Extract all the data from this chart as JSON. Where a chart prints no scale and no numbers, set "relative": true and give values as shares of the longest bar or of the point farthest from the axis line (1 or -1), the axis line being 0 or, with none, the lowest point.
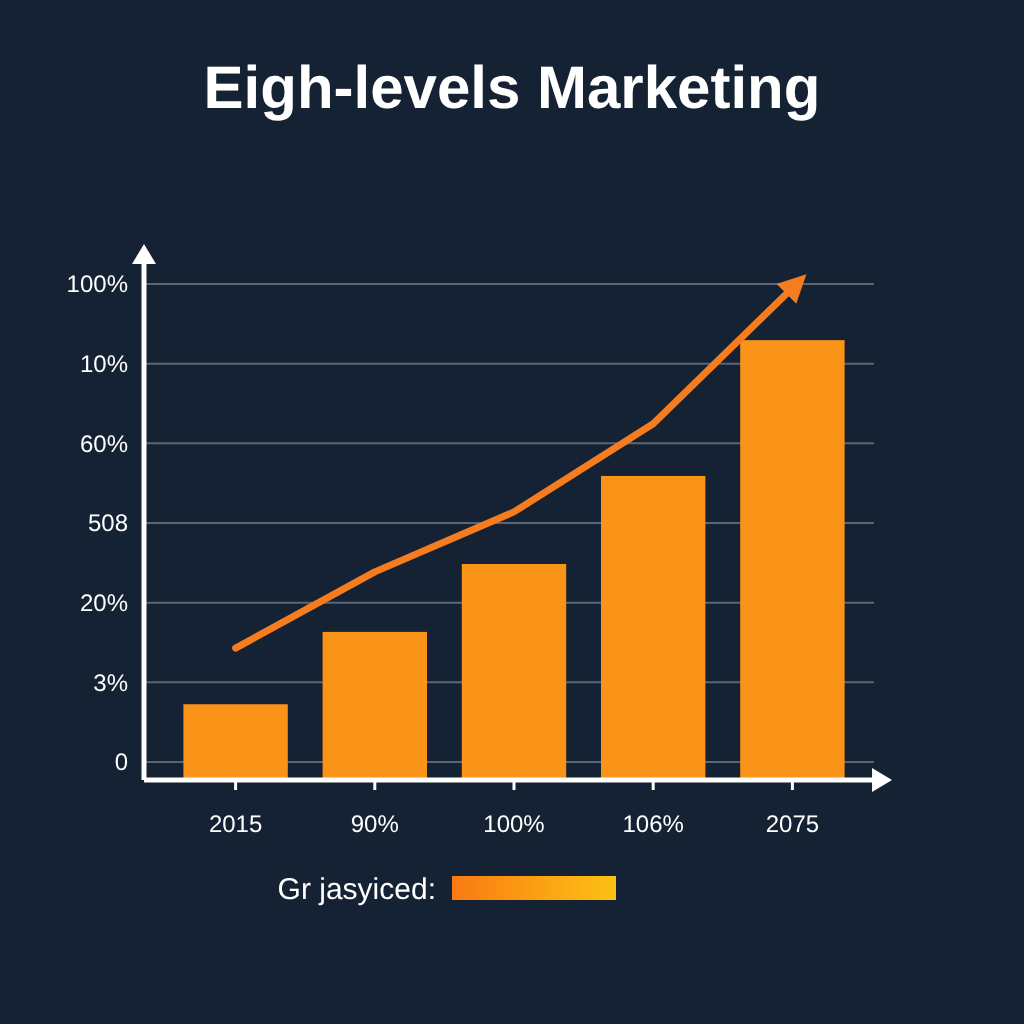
{
  "chart_data": {
    "type": "bar",
    "title": "Eigh-levels Marketing",
    "categories": [
      "2015",
      "90%",
      "100%",
      "106%",
      "2075"
    ],
    "series": [
      {
        "color": "#fa9418",
        "values": [
          0.154,
          0.301,
          0.439,
          0.618,
          0.894
        ]
      },
      {
        "type": "line",
        "color": "#f57c1f",
        "values": [
          0.268,
          0.423,
          0.545,
          0.724,
          1
        ]
      }
    ],
    "relative": true,
    "annotations": [
      "100%",
      "10%",
      "60%",
      "508",
      "20%",
      "3%",
      "0",
      "Gr jasyiced:"
    ],
    "grid": true,
    "marker": "none",
    "line_style": "solid"
  }
}
